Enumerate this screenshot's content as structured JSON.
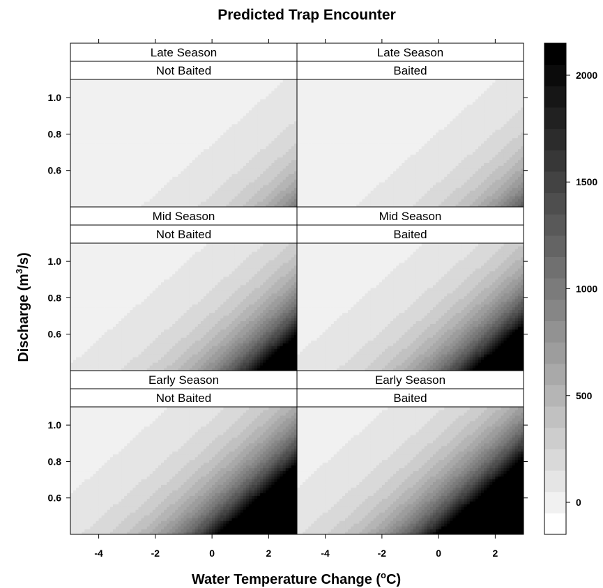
{
  "chart_data": {
    "type": "heatmap",
    "title": "Predicted Trap Encounter",
    "xlabel": "Water Temperature Change (°C)",
    "xlabel_parts": {
      "before": "Water Temperature Change (",
      "sup": "o",
      "after": "C)"
    },
    "ylabel": "Discharge (m³/s)",
    "ylabel_parts": {
      "before": "Discharge (m",
      "sup": "3",
      "after": "/s)"
    },
    "xlim": [
      -5,
      3
    ],
    "ylim": [
      0.4,
      1.1
    ],
    "x_ticks": [
      -4,
      -2,
      0,
      2
    ],
    "y_ticks": [
      0.6,
      0.8,
      1.0
    ],
    "x_tick_labels": [
      "-4",
      "-2",
      "0",
      "2"
    ],
    "y_tick_labels": [
      "0.6",
      "0.8",
      "1.0"
    ],
    "colorbar": {
      "range": [
        -150,
        2150
      ],
      "step": 100,
      "ticks": [
        0,
        500,
        1000,
        1500,
        2000
      ],
      "tick_labels": [
        "0",
        "500",
        "1000",
        "1500",
        "2000"
      ]
    },
    "panels": [
      {
        "season": "Late Season",
        "bait": "Not Baited",
        "row": 0,
        "col": 0,
        "scale": 200
      },
      {
        "season": "Late Season",
        "bait": "Baited",
        "row": 0,
        "col": 1,
        "scale": 260
      },
      {
        "season": "Mid Season",
        "bait": "Not Baited",
        "row": 1,
        "col": 0,
        "scale": 900
      },
      {
        "season": "Mid Season",
        "bait": "Baited",
        "row": 1,
        "col": 1,
        "scale": 1100
      },
      {
        "season": "Early Season",
        "bait": "Not Baited",
        "row": 2,
        "col": 0,
        "scale": 1900
      },
      {
        "season": "Early Season",
        "bait": "Baited",
        "row": 2,
        "col": 1,
        "scale": 2200
      }
    ],
    "model": "value = scale * exp(0.55*x - 4*(y - 0.4))",
    "grid": false,
    "legend": "right"
  }
}
